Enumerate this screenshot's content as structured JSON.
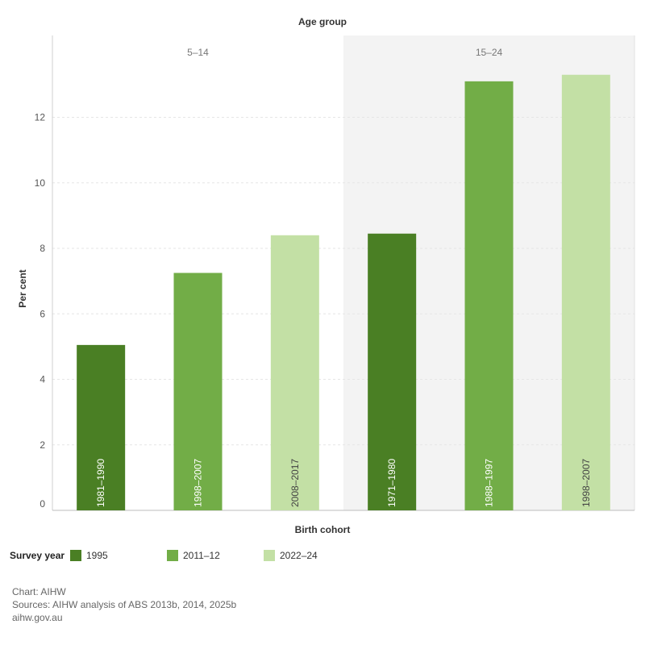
{
  "chart_data": {
    "type": "bar",
    "title": "Age group",
    "xlabel": "Birth cohort",
    "ylabel": "Per cent",
    "ylim": [
      0,
      14.5
    ],
    "yticks": [
      0,
      2,
      4,
      6,
      8,
      10,
      12
    ],
    "grid": true,
    "legend_title": "Survey year",
    "legend_position": "bottom-left",
    "series_colors": {
      "1995": "#4a7f24",
      "2011–12": "#72ad47",
      "2022–24": "#c3e0a5"
    },
    "panels": [
      {
        "label": "5–14",
        "background": "#ffffff",
        "bars": [
          {
            "cohort": "1981–1990",
            "survey": "1995",
            "value": 5.05
          },
          {
            "cohort": "1998–2007",
            "survey": "2011–12",
            "value": 7.25
          },
          {
            "cohort": "2008–2017",
            "survey": "2022–24",
            "value": 8.4
          }
        ]
      },
      {
        "label": "15–24",
        "background": "#f3f3f3",
        "bars": [
          {
            "cohort": "1971–1980",
            "survey": "1995",
            "value": 8.45
          },
          {
            "cohort": "1988–1997",
            "survey": "2011–12",
            "value": 13.1
          },
          {
            "cohort": "1998–2007",
            "survey": "2022–24",
            "value": 13.3
          }
        ]
      }
    ]
  },
  "legend": {
    "title": "Survey year",
    "items": [
      {
        "label": "1995",
        "color": "#4a7f24"
      },
      {
        "label": "2011–12",
        "color": "#72ad47"
      },
      {
        "label": "2022–24",
        "color": "#c3e0a5"
      }
    ]
  },
  "footer": {
    "line1": "Chart: AIHW",
    "line2": "Sources: AIHW analysis of ABS 2013b, 2014, 2025b",
    "line3": "aihw.gov.au"
  }
}
